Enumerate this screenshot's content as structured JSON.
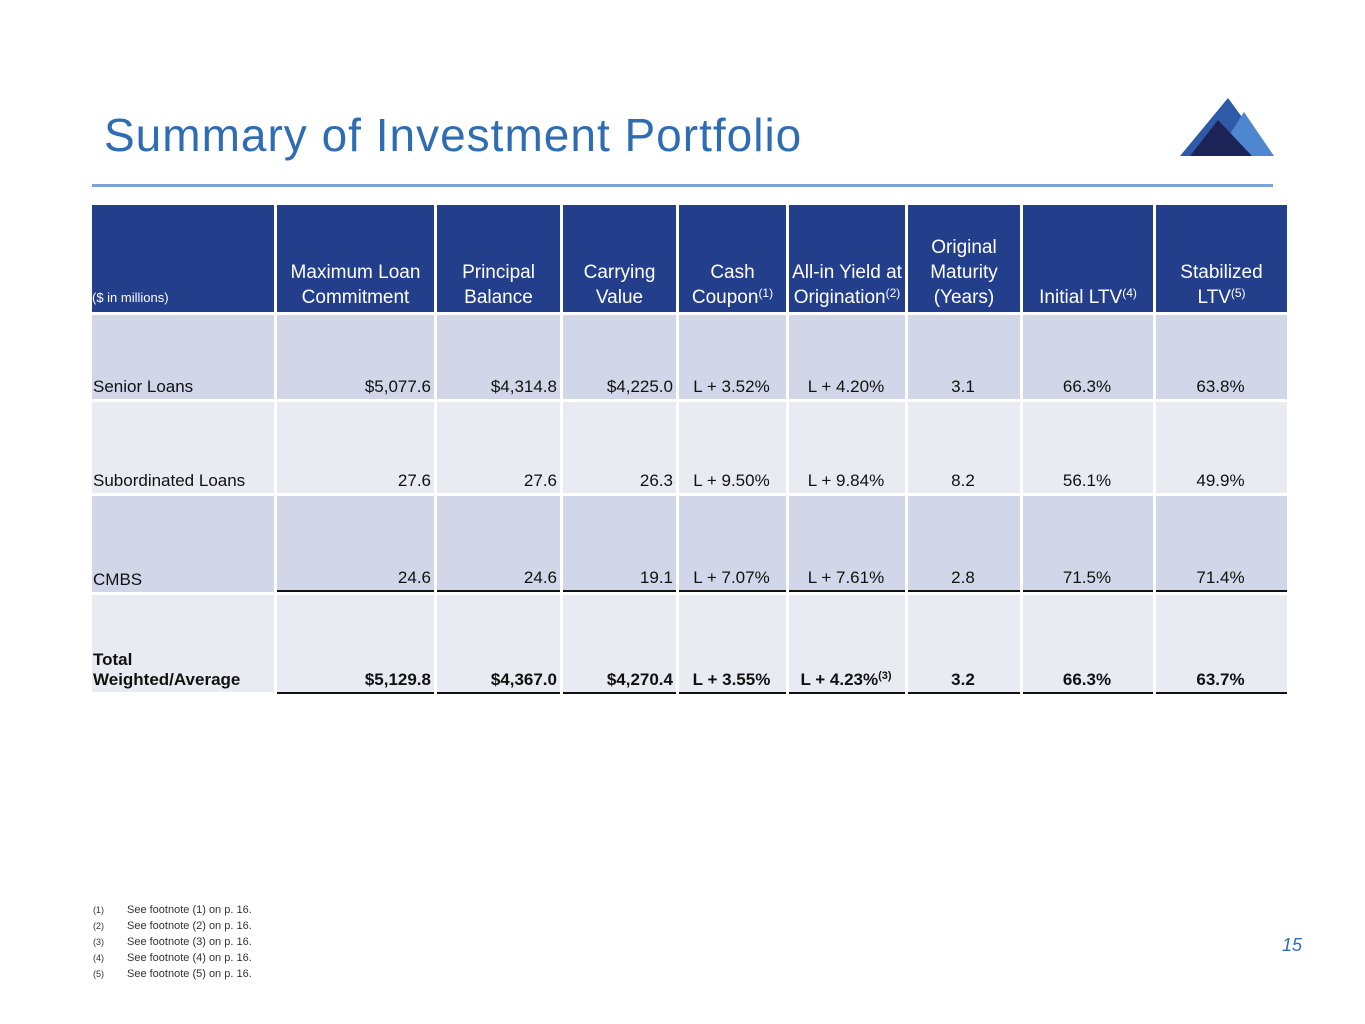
{
  "title": "Summary of Investment Portfolio",
  "page_number": "15",
  "table": {
    "unit_label": "($ in millions)",
    "headers": [
      {
        "lines": [
          "Maximum Loan",
          "Commitment"
        ],
        "sup": ""
      },
      {
        "lines": [
          "Principal",
          "Balance"
        ],
        "sup": ""
      },
      {
        "lines": [
          "Carrying",
          "Value"
        ],
        "sup": ""
      },
      {
        "lines": [
          "Cash",
          "Coupon"
        ],
        "sup": "(1)"
      },
      {
        "lines": [
          "All-in Yield at",
          "Origination"
        ],
        "sup": "(2)"
      },
      {
        "lines": [
          "Original",
          "Maturity",
          "(Years)"
        ],
        "sup": ""
      },
      {
        "lines": [
          "Initial LTV"
        ],
        "sup": "(4)"
      },
      {
        "lines": [
          "Stabilized",
          "LTV"
        ],
        "sup": "(5)"
      }
    ],
    "rows": [
      {
        "label": "Senior Loans",
        "max_commitment": "$5,077.6",
        "principal": "$4,314.8",
        "carrying": "$4,225.0",
        "cash_coupon": "L + 3.52%",
        "all_in_yield": "L + 4.20%",
        "all_in_sup": "",
        "maturity": "3.1",
        "initial_ltv": "66.3%",
        "stabilized_ltv": "63.8%"
      },
      {
        "label": "Subordinated Loans",
        "max_commitment": "27.6",
        "principal": "27.6",
        "carrying": "26.3",
        "cash_coupon": "L + 9.50%",
        "all_in_yield": "L + 9.84%",
        "all_in_sup": "",
        "maturity": "8.2",
        "initial_ltv": "56.1%",
        "stabilized_ltv": "49.9%"
      },
      {
        "label": "CMBS",
        "max_commitment": "24.6",
        "principal": "24.6",
        "carrying": "19.1",
        "cash_coupon": "L + 7.07%",
        "all_in_yield": "L + 7.61%",
        "all_in_sup": "",
        "maturity": "2.8",
        "initial_ltv": "71.5%",
        "stabilized_ltv": "71.4%"
      }
    ],
    "total": {
      "label_line1": "Total",
      "label_line2": "Weighted/Average",
      "max_commitment": "$5,129.8",
      "principal": "$4,367.0",
      "carrying": "$4,270.4",
      "cash_coupon": "L + 3.55%",
      "all_in_yield": "L + 4.23%",
      "all_in_sup": "(3)",
      "maturity": "3.2",
      "initial_ltv": "66.3%",
      "stabilized_ltv": "63.7%"
    }
  },
  "footnotes": [
    {
      "mark": "(1)",
      "text": "See footnote (1) on p. 16."
    },
    {
      "mark": "(2)",
      "text": "See footnote (2) on p. 16."
    },
    {
      "mark": "(3)",
      "text": "See footnote (3) on p. 16."
    },
    {
      "mark": "(4)",
      "text": "See footnote (4) on p. 16."
    },
    {
      "mark": "(5)",
      "text": "See footnote (5) on p. 16."
    }
  ],
  "colors": {
    "header_bg": "#233f8c",
    "title": "#2e6db4",
    "row_dark": "#d1d7e8",
    "row_light": "#e9ebf3"
  },
  "logo_icon": "mountain-logo-icon"
}
